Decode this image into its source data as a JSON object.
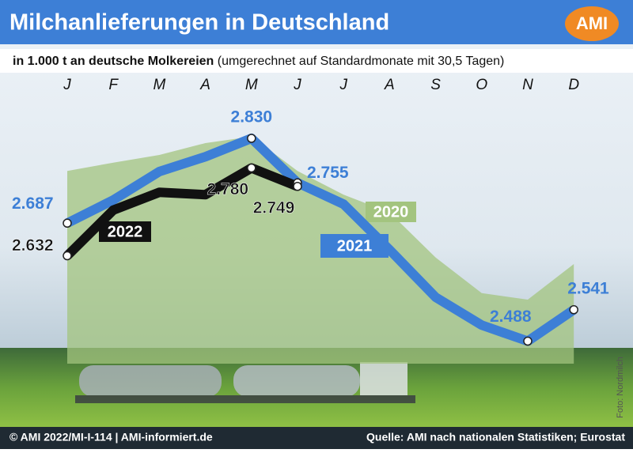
{
  "header": {
    "title": "Milchanlieferungen in Deutschland",
    "logo": "AMI"
  },
  "footer": {
    "left": "© AMI 2022/MI-I-114 | AMI-informiert.de",
    "right": "Quelle: AMI nach nationalen Statistiken; Eurostat",
    "photo": "Foto: Nordmilch"
  },
  "chart_data": {
    "type": "line",
    "subtitle_bold": "in 1.000 t an deutsche Molkereien",
    "subtitle": "(umgerechnet auf Standardmonate mit 30,5 Tagen)",
    "categories": [
      "J",
      "F",
      "M",
      "A",
      "M",
      "J",
      "J",
      "A",
      "S",
      "O",
      "N",
      "D"
    ],
    "ylim": [
      2450,
      2930
    ],
    "series": [
      {
        "name": "2020",
        "color": "#a3c47f",
        "area": true,
        "values": [
          2775,
          2789,
          2802,
          2822,
          2833,
          2775,
          2735,
          2705,
          2629,
          2569,
          2558,
          2618
        ]
      },
      {
        "name": "2021",
        "color": "#3d7fd6",
        "values": [
          2687,
          2726,
          2774,
          2799,
          2830,
          2755,
          2719,
          2642,
          2562,
          2515,
          2488,
          2541
        ],
        "value_labels": [
          "2.687",
          null,
          null,
          null,
          "2.830",
          "2.755",
          null,
          null,
          null,
          null,
          "2.488",
          "2.541"
        ]
      },
      {
        "name": "2022",
        "color": "#111111",
        "values": [
          2632,
          2709,
          2739,
          2735,
          2780,
          2749,
          null,
          null,
          null,
          null,
          null,
          null
        ],
        "value_labels": [
          "2.632",
          null,
          null,
          null,
          "2.780",
          "2.749",
          null,
          null,
          null,
          null,
          null,
          null
        ]
      }
    ]
  }
}
